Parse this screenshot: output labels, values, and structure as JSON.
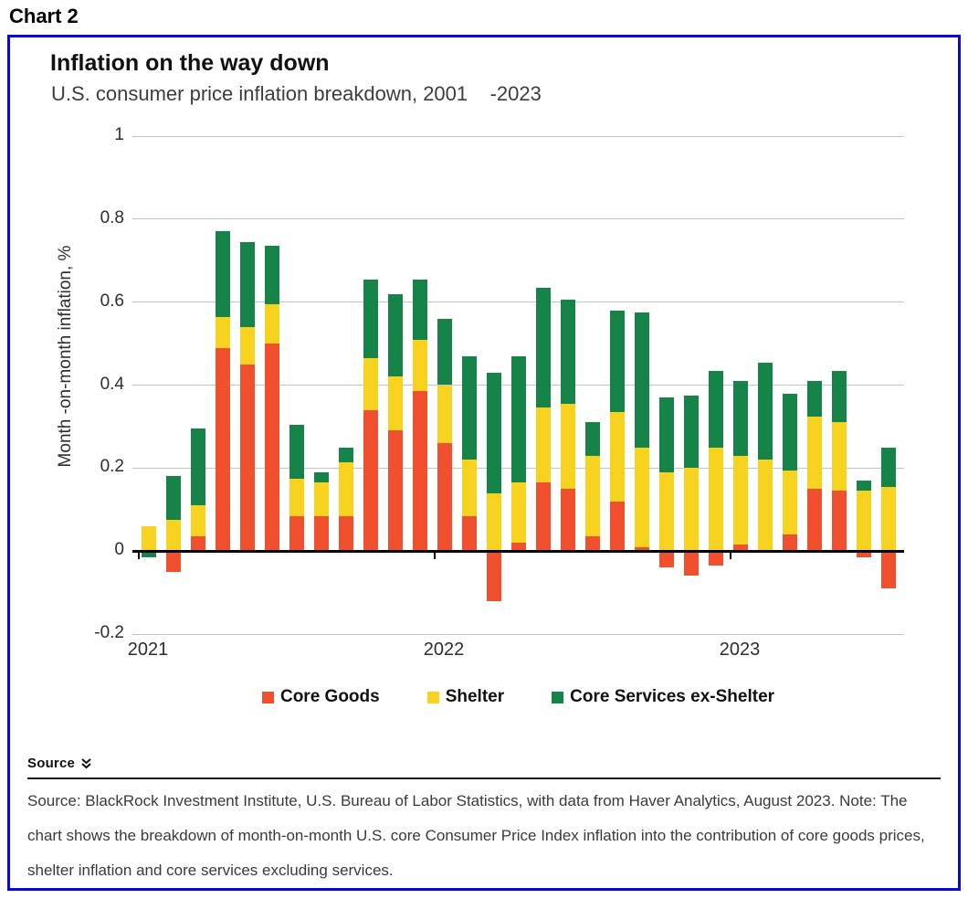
{
  "page": {
    "chart_label": "Chart 2"
  },
  "header": {
    "title": "Inflation on the way down",
    "subtitle": "U.S. consumer price inflation breakdown, 2001    -2023"
  },
  "colors": {
    "core_goods": "#f0502d",
    "shelter": "#f7d21e",
    "core_services_ex_shelter": "#168449",
    "panel_border": "#0a07dd",
    "gridline": "#c4c4c4",
    "axis": "#000000"
  },
  "chart_data": {
    "type": "bar",
    "stacked": true,
    "title": "Inflation on the way down",
    "subtitle": "U.S. consumer price inflation breakdown, 2001    -2023",
    "ylabel": "Month -on-month inflation, %",
    "ylim": [
      -0.2,
      1.0
    ],
    "yticks": [
      1,
      0.8,
      0.6,
      0.4,
      0.2,
      0,
      -0.2
    ],
    "ytick_labels": [
      "1",
      "0.8",
      "0.6",
      "0.4",
      "0.2",
      "0",
      "-0.2"
    ],
    "xtick_labels": [
      "2021",
      "2022",
      "2023"
    ],
    "grid": true,
    "legend_position": "bottom",
    "x": [
      "2021-01",
      "2021-02",
      "2021-03",
      "2021-04",
      "2021-05",
      "2021-06",
      "2021-07",
      "2021-08",
      "2021-09",
      "2021-10",
      "2021-11",
      "2021-12",
      "2022-01",
      "2022-02",
      "2022-03",
      "2022-04",
      "2022-05",
      "2022-06",
      "2022-07",
      "2022-08",
      "2022-09",
      "2022-10",
      "2022-11",
      "2022-12",
      "2023-01",
      "2023-02",
      "2023-03",
      "2023-04",
      "2023-05",
      "2023-06",
      "2023-07"
    ],
    "series": [
      {
        "name": "Core Goods",
        "color": "#f0502d",
        "values": [
          0,
          -0.05,
          0.035,
          0.49,
          0.45,
          0.5,
          0.085,
          0.085,
          0.085,
          0.34,
          0.29,
          0.385,
          0.26,
          0.085,
          -0.12,
          0.02,
          0.165,
          0.15,
          0.035,
          0.12,
          0.01,
          -0.04,
          -0.06,
          -0.035,
          0.015,
          0,
          0.04,
          0.15,
          0.145,
          -0.015,
          -0.09
        ]
      },
      {
        "name": "Shelter",
        "color": "#f7d21e",
        "values": [
          0.06,
          0.075,
          0.075,
          0.075,
          0.09,
          0.095,
          0.09,
          0.08,
          0.13,
          0.125,
          0.13,
          0.125,
          0.14,
          0.135,
          0.14,
          0.145,
          0.18,
          0.205,
          0.195,
          0.215,
          0.24,
          0.19,
          0.2,
          0.25,
          0.215,
          0.22,
          0.155,
          0.175,
          0.165,
          0.145,
          0.155
        ]
      },
      {
        "name": "Core Services ex-Shelter",
        "color": "#168449",
        "values": [
          -0.015,
          0.105,
          0.185,
          0.205,
          0.205,
          0.14,
          0.13,
          0.025,
          0.035,
          0.19,
          0.2,
          0.145,
          0.16,
          0.25,
          0.29,
          0.305,
          0.29,
          0.25,
          0.08,
          0.245,
          0.325,
          0.18,
          0.175,
          0.185,
          0.18,
          0.235,
          0.185,
          0.085,
          0.125,
          0.025,
          0.095
        ]
      }
    ]
  },
  "source": {
    "header_label": "Source",
    "chevron_icon": "double-chevron-down",
    "text": "Source: BlackRock Investment Institute, U.S. Bureau of Labor Statistics, with data from Haver Analytics, August 2023. Note: The chart shows the breakdown of month-on-month U.S. core Consumer Price Index inflation into the contribution of core goods prices, shelter inflation and core services excluding services."
  }
}
